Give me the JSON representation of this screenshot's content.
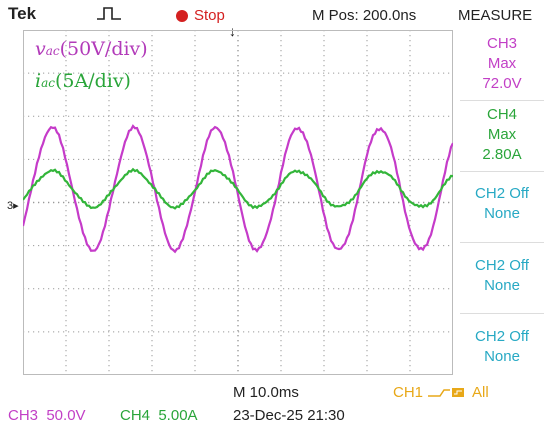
{
  "header": {
    "brand": "Tek",
    "acquire_state": "Stop",
    "position": "M Pos: 200.0ns",
    "menu_title": "MEASURE"
  },
  "channels": {
    "voltage": {
      "symbol": "v",
      "subscript": "ac",
      "scale": "(50V/div)",
      "color": "#b23ab9"
    },
    "current": {
      "symbol": "i",
      "subscript": "ac",
      "scale": "(5A/div)",
      "color": "#2aa53a"
    }
  },
  "ground_marker": "3",
  "measurements": [
    {
      "channel": "CH3",
      "type": "Max",
      "value": "72.0V"
    },
    {
      "channel": "CH4",
      "type": "Max",
      "value": "2.80A"
    },
    {
      "channel": "CH2 Off",
      "type": "None"
    },
    {
      "channel": "CH2 Off",
      "type": "None"
    },
    {
      "channel": "CH2 Off",
      "type": "None"
    }
  ],
  "footer": {
    "timebase": "M 10.0ms",
    "trigger_channel": "CH1",
    "trigger_mode": "All",
    "ch3_setting": "CH3  50.0V",
    "ch4_setting": "CH4  5.00A",
    "timestamp": "23-Dec-25 21:30"
  },
  "waveforms": {
    "cycles_shown": 5,
    "voltage_color": "#c53bc9",
    "current_color": "#33b53a"
  }
}
